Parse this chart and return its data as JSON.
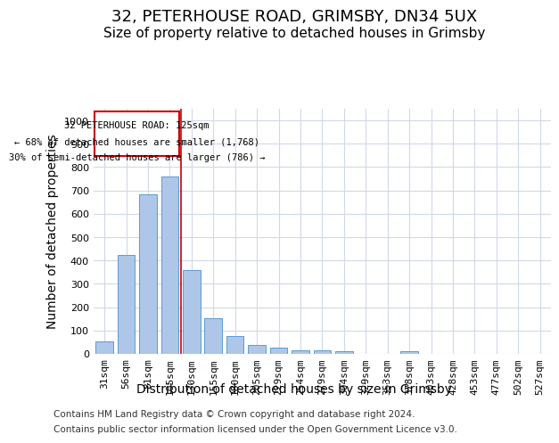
{
  "title_line1": "32, PETERHOUSE ROAD, GRIMSBY, DN34 5UX",
  "title_line2": "Size of property relative to detached houses in Grimsby",
  "xlabel": "Distribution of detached houses by size in Grimsby",
  "ylabel": "Number of detached properties",
  "footer_line1": "Contains HM Land Registry data © Crown copyright and database right 2024.",
  "footer_line2": "Contains public sector information licensed under the Open Government Licence v3.0.",
  "categories": [
    "31sqm",
    "56sqm",
    "81sqm",
    "105sqm",
    "130sqm",
    "155sqm",
    "180sqm",
    "205sqm",
    "229sqm",
    "254sqm",
    "279sqm",
    "304sqm",
    "329sqm",
    "353sqm",
    "378sqm",
    "403sqm",
    "428sqm",
    "453sqm",
    "477sqm",
    "502sqm",
    "527sqm"
  ],
  "values": [
    52,
    423,
    685,
    760,
    360,
    153,
    75,
    40,
    28,
    17,
    17,
    10,
    0,
    0,
    10,
    0,
    0,
    0,
    0,
    0,
    0
  ],
  "bar_color": "#aec6e8",
  "bar_edge_color": "#5b9bd5",
  "bar_width": 0.8,
  "ylim": [
    0,
    1050
  ],
  "yticks": [
    0,
    100,
    200,
    300,
    400,
    500,
    600,
    700,
    800,
    900,
    1000
  ],
  "grid_color": "#d0d8e8",
  "annotation_text_line1": "32 PETERHOUSE ROAD: 125sqm",
  "annotation_text_line2": "← 68% of detached houses are smaller (1,768)",
  "annotation_text_line3": "30% of semi-detached houses are larger (786) →",
  "vline_x_index": 3.5,
  "vline_color": "#cc0000",
  "annotation_box_edge_color": "#cc0000",
  "title_fontsize": 13,
  "subtitle_fontsize": 11,
  "tick_fontsize": 8,
  "label_fontsize": 10,
  "footer_fontsize": 7.5
}
